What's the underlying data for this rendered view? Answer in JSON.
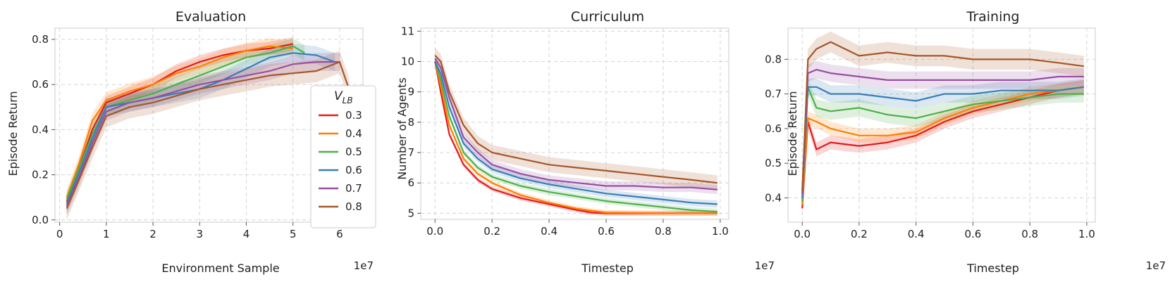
{
  "colors": {
    "0.3": "#e41a1c",
    "0.4": "#ff7f00",
    "0.5": "#4daf4a",
    "0.6": "#377eb8",
    "0.7": "#984ea3",
    "0.8": "#a65628"
  },
  "legend": {
    "title": "V_LB",
    "title_main": "V",
    "title_sub": "LB",
    "entries": [
      "0.3",
      "0.4",
      "0.5",
      "0.6",
      "0.7",
      "0.8"
    ],
    "placement": "right"
  },
  "chart_data": [
    {
      "type": "line",
      "title": "Evaluation",
      "xlabel": "Environment Sample",
      "ylabel": "Episode Return",
      "x_multiplier": "1e7",
      "xlim": [
        -0.1,
        6.5
      ],
      "ylim": [
        -0.01,
        0.85
      ],
      "xticks": [
        0,
        1,
        2,
        3,
        4,
        5,
        6
      ],
      "yticks": [
        0.0,
        0.2,
        0.4,
        0.6,
        0.8
      ],
      "grid": true,
      "series": [
        {
          "name": "0.3",
          "x": [
            0.15,
            0.4,
            0.7,
            1.0,
            1.5,
            2.0,
            2.5,
            3.0,
            3.5,
            4.0,
            4.5,
            5.0
          ],
          "y": [
            0.08,
            0.22,
            0.4,
            0.52,
            0.56,
            0.6,
            0.66,
            0.7,
            0.73,
            0.75,
            0.76,
            0.78
          ],
          "band": 0.03
        },
        {
          "name": "0.4",
          "x": [
            0.15,
            0.4,
            0.7,
            1.0,
            1.5,
            2.0,
            2.5,
            3.0,
            3.5,
            4.0,
            4.5,
            5.0
          ],
          "y": [
            0.1,
            0.24,
            0.44,
            0.53,
            0.57,
            0.6,
            0.65,
            0.68,
            0.72,
            0.75,
            0.77,
            0.76
          ],
          "band": 0.035
        },
        {
          "name": "0.5",
          "x": [
            0.15,
            0.4,
            0.7,
            1.0,
            1.5,
            2.0,
            2.5,
            3.0,
            3.5,
            4.0,
            4.5,
            5.0,
            5.25
          ],
          "y": [
            0.09,
            0.22,
            0.38,
            0.5,
            0.53,
            0.56,
            0.6,
            0.64,
            0.68,
            0.72,
            0.74,
            0.77,
            0.74
          ],
          "band": 0.035
        },
        {
          "name": "0.6",
          "x": [
            0.15,
            0.4,
            0.7,
            1.0,
            1.5,
            2.0,
            2.5,
            3.0,
            3.5,
            4.0,
            4.5,
            5.0,
            5.5,
            5.9
          ],
          "y": [
            0.07,
            0.2,
            0.36,
            0.5,
            0.52,
            0.54,
            0.56,
            0.58,
            0.62,
            0.67,
            0.72,
            0.74,
            0.73,
            0.7
          ],
          "band": 0.04
        },
        {
          "name": "0.7",
          "x": [
            0.15,
            0.4,
            0.7,
            1.0,
            1.5,
            2.0,
            2.5,
            3.0,
            3.5,
            4.0,
            4.5,
            5.0,
            5.5,
            6.0
          ],
          "y": [
            0.06,
            0.18,
            0.34,
            0.48,
            0.52,
            0.54,
            0.57,
            0.6,
            0.62,
            0.64,
            0.66,
            0.69,
            0.7,
            0.7
          ],
          "band": 0.04
        },
        {
          "name": "0.8",
          "x": [
            0.15,
            0.4,
            0.7,
            1.0,
            1.5,
            2.0,
            2.5,
            3.0,
            3.5,
            4.0,
            4.5,
            5.0,
            5.5,
            6.0,
            6.2
          ],
          "y": [
            0.05,
            0.17,
            0.32,
            0.46,
            0.5,
            0.52,
            0.55,
            0.58,
            0.6,
            0.62,
            0.64,
            0.65,
            0.66,
            0.7,
            0.58
          ],
          "band": 0.05
        }
      ]
    },
    {
      "type": "line",
      "title": "Curriculum",
      "xlabel": "Timestep",
      "ylabel": "Number of Agents",
      "x_multiplier": "1e7",
      "xlim": [
        -0.05,
        1.03
      ],
      "ylim": [
        4.8,
        11.1
      ],
      "xticks": [
        0.0,
        0.2,
        0.4,
        0.6,
        0.8,
        1.0
      ],
      "yticks": [
        5,
        6,
        7,
        8,
        9,
        10,
        11
      ],
      "grid": true,
      "series": [
        {
          "name": "0.3",
          "x": [
            0.0,
            0.02,
            0.05,
            0.1,
            0.15,
            0.2,
            0.3,
            0.4,
            0.5,
            0.55,
            0.6,
            0.8,
            0.99
          ],
          "y": [
            10.0,
            9.0,
            7.6,
            6.6,
            6.1,
            5.8,
            5.5,
            5.3,
            5.1,
            5.02,
            5.0,
            5.0,
            5.0
          ],
          "band": 0.08
        },
        {
          "name": "0.4",
          "x": [
            0.0,
            0.02,
            0.05,
            0.1,
            0.15,
            0.2,
            0.3,
            0.4,
            0.5,
            0.6,
            0.8,
            0.99
          ],
          "y": [
            10.0,
            9.2,
            7.9,
            6.8,
            6.3,
            6.0,
            5.6,
            5.35,
            5.15,
            5.02,
            5.0,
            5.0
          ],
          "band": 0.08
        },
        {
          "name": "0.5",
          "x": [
            0.0,
            0.02,
            0.05,
            0.1,
            0.15,
            0.2,
            0.3,
            0.4,
            0.5,
            0.6,
            0.7,
            0.8,
            0.9,
            0.99
          ],
          "y": [
            10.0,
            9.4,
            8.2,
            7.0,
            6.5,
            6.2,
            5.9,
            5.7,
            5.55,
            5.4,
            5.3,
            5.2,
            5.1,
            5.05
          ],
          "band": 0.1
        },
        {
          "name": "0.6",
          "x": [
            0.0,
            0.02,
            0.05,
            0.1,
            0.15,
            0.2,
            0.3,
            0.4,
            0.5,
            0.6,
            0.7,
            0.8,
            0.9,
            0.99
          ],
          "y": [
            10.0,
            9.6,
            8.5,
            7.3,
            6.8,
            6.45,
            6.15,
            5.95,
            5.8,
            5.65,
            5.55,
            5.45,
            5.35,
            5.3
          ],
          "band": 0.12
        },
        {
          "name": "0.7",
          "x": [
            0.0,
            0.02,
            0.05,
            0.1,
            0.15,
            0.2,
            0.3,
            0.4,
            0.5,
            0.6,
            0.7,
            0.8,
            0.9,
            0.99
          ],
          "y": [
            10.1,
            9.8,
            8.8,
            7.5,
            7.0,
            6.6,
            6.3,
            6.1,
            6.0,
            5.9,
            5.9,
            5.85,
            5.85,
            5.78
          ],
          "band": 0.15
        },
        {
          "name": "0.8",
          "x": [
            0.0,
            0.02,
            0.05,
            0.1,
            0.15,
            0.2,
            0.3,
            0.4,
            0.5,
            0.6,
            0.7,
            0.8,
            0.9,
            0.99
          ],
          "y": [
            10.2,
            10.0,
            9.0,
            7.9,
            7.3,
            7.0,
            6.8,
            6.6,
            6.5,
            6.4,
            6.3,
            6.2,
            6.1,
            6.0
          ],
          "band": 0.25
        }
      ]
    },
    {
      "type": "line",
      "title": "Training",
      "xlabel": "Timestep",
      "ylabel": "Episode Return",
      "x_multiplier": "1e7",
      "xlim": [
        -0.05,
        1.03
      ],
      "ylim": [
        0.33,
        0.89
      ],
      "xticks": [
        0.0,
        0.2,
        0.4,
        0.6,
        0.8,
        1.0
      ],
      "yticks": [
        0.4,
        0.5,
        0.6,
        0.7,
        0.8
      ],
      "grid": true,
      "series": [
        {
          "name": "0.3",
          "x": [
            0.0,
            0.02,
            0.05,
            0.1,
            0.2,
            0.3,
            0.4,
            0.5,
            0.6,
            0.7,
            0.8,
            0.9,
            0.99
          ],
          "y": [
            0.37,
            0.62,
            0.54,
            0.56,
            0.55,
            0.56,
            0.58,
            0.62,
            0.65,
            0.67,
            0.69,
            0.71,
            0.72
          ],
          "band": 0.02
        },
        {
          "name": "0.4",
          "x": [
            0.0,
            0.02,
            0.05,
            0.1,
            0.2,
            0.3,
            0.4,
            0.5,
            0.6,
            0.7,
            0.8,
            0.9,
            0.99
          ],
          "y": [
            0.38,
            0.63,
            0.62,
            0.6,
            0.58,
            0.58,
            0.59,
            0.63,
            0.66,
            0.68,
            0.7,
            0.71,
            0.72
          ],
          "band": 0.02
        },
        {
          "name": "0.5",
          "x": [
            0.0,
            0.02,
            0.05,
            0.1,
            0.2,
            0.3,
            0.4,
            0.5,
            0.6,
            0.7,
            0.8,
            0.9,
            0.99
          ],
          "y": [
            0.39,
            0.72,
            0.66,
            0.65,
            0.66,
            0.64,
            0.63,
            0.65,
            0.67,
            0.68,
            0.69,
            0.7,
            0.7
          ],
          "band": 0.025
        },
        {
          "name": "0.6",
          "x": [
            0.0,
            0.02,
            0.05,
            0.1,
            0.2,
            0.3,
            0.4,
            0.5,
            0.6,
            0.7,
            0.8,
            0.9,
            0.99
          ],
          "y": [
            0.4,
            0.72,
            0.72,
            0.7,
            0.7,
            0.69,
            0.68,
            0.7,
            0.7,
            0.71,
            0.71,
            0.71,
            0.72
          ],
          "band": 0.025
        },
        {
          "name": "0.7",
          "x": [
            0.0,
            0.02,
            0.05,
            0.1,
            0.2,
            0.3,
            0.4,
            0.5,
            0.6,
            0.7,
            0.8,
            0.9,
            0.99
          ],
          "y": [
            0.41,
            0.76,
            0.77,
            0.76,
            0.75,
            0.74,
            0.74,
            0.74,
            0.74,
            0.74,
            0.74,
            0.75,
            0.75
          ],
          "band": 0.025
        },
        {
          "name": "0.8",
          "x": [
            0.0,
            0.02,
            0.05,
            0.1,
            0.2,
            0.3,
            0.4,
            0.5,
            0.6,
            0.7,
            0.8,
            0.9,
            0.99
          ],
          "y": [
            0.42,
            0.8,
            0.83,
            0.85,
            0.81,
            0.82,
            0.81,
            0.81,
            0.8,
            0.8,
            0.8,
            0.79,
            0.78
          ],
          "band": 0.03
        }
      ]
    }
  ]
}
